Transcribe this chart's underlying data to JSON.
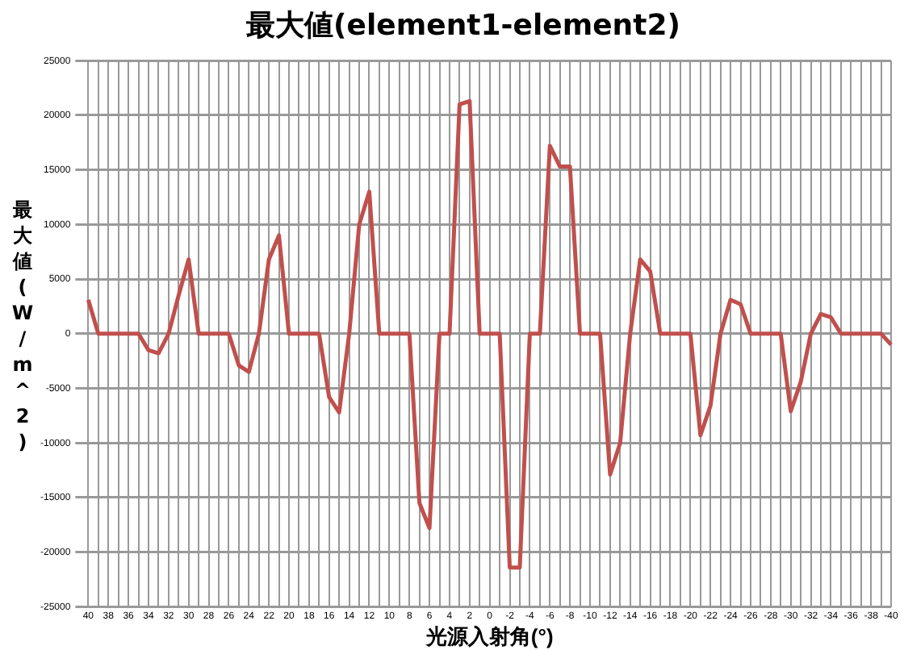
{
  "chart_data": {
    "type": "line",
    "title": "最大値(element1-element2)",
    "xlabel": "光源入射角(°)",
    "ylabel": "最大値(W/m^2)",
    "categories": [
      "40",
      null,
      "38",
      null,
      "36",
      null,
      "34",
      null,
      "32",
      null,
      "30",
      null,
      "28",
      null,
      "26",
      null,
      "24",
      null,
      "22",
      null,
      "20",
      null,
      "18",
      null,
      "16",
      null,
      "14",
      null,
      "12",
      null,
      "10",
      null,
      "8",
      null,
      "6",
      null,
      "4",
      null,
      "2",
      null,
      "0",
      null,
      "-2",
      null,
      "-4",
      null,
      "-6",
      null,
      "-8",
      null,
      "-10",
      null,
      "-12",
      null,
      "-14",
      null,
      "-16",
      null,
      "-18",
      null,
      "-20",
      null,
      "-22",
      null,
      "-24",
      null,
      "-26",
      null,
      "-28",
      null,
      "-30",
      null,
      "-32",
      null,
      "-34",
      null,
      "-36",
      null,
      "-38",
      null,
      "-40"
    ],
    "series": [
      {
        "color": "#c0504d",
        "values": [
          3100,
          0,
          0,
          0,
          0,
          0,
          -1500,
          -1800,
          0,
          3500,
          6800,
          0,
          0,
          0,
          0,
          -2900,
          -3500,
          0,
          6800,
          9000,
          0,
          0,
          0,
          0,
          -5800,
          -7200,
          0,
          10000,
          13000,
          0,
          0,
          0,
          0,
          -15500,
          -17800,
          0,
          0,
          21000,
          21300,
          0,
          0,
          0,
          -21400,
          -21400,
          0,
          0,
          17200,
          15300,
          15300,
          0,
          0,
          0,
          -12900,
          -10000,
          0,
          6800,
          5700,
          0,
          0,
          0,
          0,
          -9300,
          -6600,
          0,
          3100,
          2700,
          0,
          0,
          0,
          0,
          -7100,
          -4400,
          0,
          1800,
          1500,
          0,
          0,
          0,
          0,
          0,
          -1000
        ]
      }
    ],
    "ylim": [
      -25000,
      25000
    ],
    "yticks": [
      -25000,
      -20000,
      -15000,
      -10000,
      -5000,
      0,
      5000,
      10000,
      15000,
      20000,
      25000
    ],
    "grid": true,
    "marker": "none",
    "line_style": "solid"
  }
}
